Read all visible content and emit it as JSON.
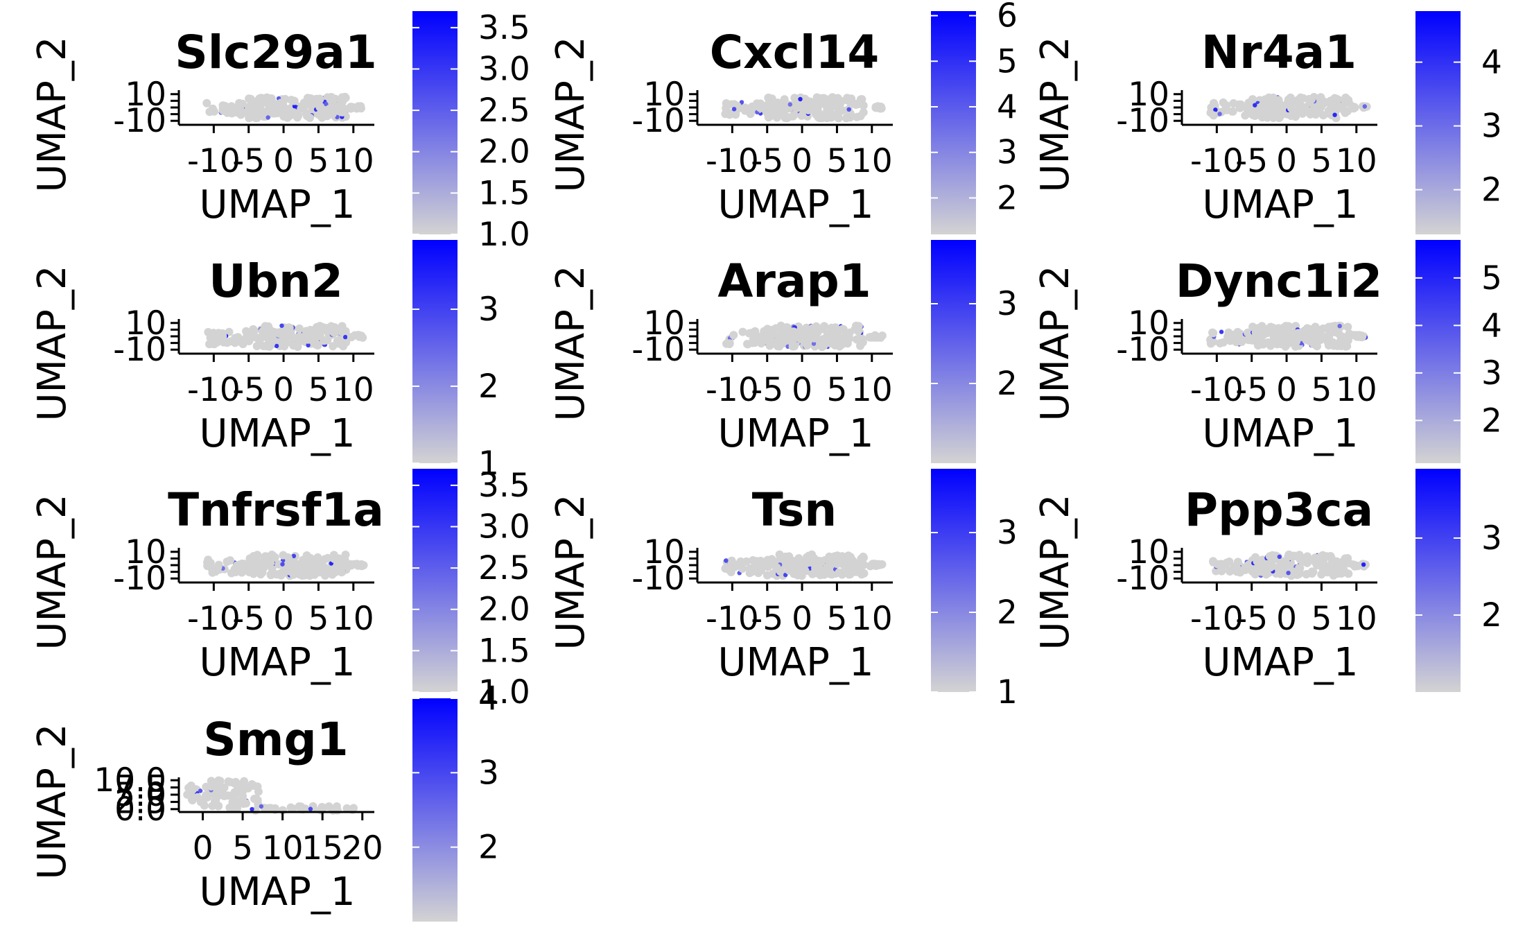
{
  "chart_data": [
    {
      "type": "scatter",
      "title": "Slc29a1",
      "xlabel": "UMAP_1",
      "ylabel": "UMAP_2",
      "xlim": [
        -15,
        13
      ],
      "ylim": [
        -13,
        13
      ],
      "xticks": [
        -10,
        -5,
        0,
        5,
        10
      ],
      "yticks": [
        -10,
        -5,
        0,
        5,
        10
      ],
      "xtick_labels": [
        "-10",
        "-5",
        "0",
        "5",
        "10"
      ],
      "ytick_labels": [
        "-10",
        "",
        "",
        "",
        "10"
      ],
      "color_scale": {
        "low": "#d3d3d3",
        "high": "#0000ff",
        "range": [
          1.0,
          3.7
        ],
        "ticks": [
          1.0,
          1.5,
          2.0,
          2.5,
          3.0,
          3.5
        ],
        "tick_labels": [
          "1.0",
          "1.5",
          "2.0",
          "2.5",
          "3.0",
          "3.5"
        ]
      }
    },
    {
      "type": "scatter",
      "title": "Cxcl14",
      "xlabel": "UMAP_1",
      "ylabel": "UMAP_2",
      "xlim": [
        -15,
        13
      ],
      "ylim": [
        -13,
        13
      ],
      "xticks": [
        -10,
        -5,
        0,
        5,
        10
      ],
      "yticks": [
        -10,
        -5,
        0,
        5,
        10
      ],
      "xtick_labels": [
        "-10",
        "-5",
        "0",
        "5",
        "10"
      ],
      "ytick_labels": [
        "-10",
        "",
        "",
        "",
        "10"
      ],
      "color_scale": {
        "low": "#d3d3d3",
        "high": "#0000ff",
        "range": [
          1.2,
          6.1
        ],
        "ticks": [
          2,
          3,
          4,
          5,
          6
        ],
        "tick_labels": [
          "2",
          "3",
          "4",
          "5",
          "6"
        ]
      }
    },
    {
      "type": "scatter",
      "title": "Nr4a1",
      "xlabel": "UMAP_1",
      "ylabel": "UMAP_2",
      "xlim": [
        -15,
        13
      ],
      "ylim": [
        -13,
        13
      ],
      "xticks": [
        -10,
        -5,
        0,
        5,
        10
      ],
      "yticks": [
        -10,
        -5,
        0,
        5,
        10
      ],
      "xtick_labels": [
        "-10",
        "-5",
        "0",
        "5",
        "10"
      ],
      "ytick_labels": [
        "-10",
        "",
        "",
        "",
        "10"
      ],
      "color_scale": {
        "low": "#d3d3d3",
        "high": "#0000ff",
        "range": [
          1.3,
          4.8
        ],
        "ticks": [
          2,
          3,
          4
        ],
        "tick_labels": [
          "2",
          "3",
          "4"
        ]
      }
    },
    {
      "type": "scatter",
      "title": "Ubn2",
      "xlabel": "UMAP_1",
      "ylabel": "UMAP_2",
      "xlim": [
        -15,
        13
      ],
      "ylim": [
        -13,
        13
      ],
      "xticks": [
        -10,
        -5,
        0,
        5,
        10
      ],
      "yticks": [
        -10,
        -5,
        0,
        5,
        10
      ],
      "xtick_labels": [
        "-10",
        "-5",
        "0",
        "5",
        "10"
      ],
      "ytick_labels": [
        "-10",
        "",
        "",
        "",
        "10"
      ],
      "color_scale": {
        "low": "#d3d3d3",
        "high": "#0000ff",
        "range": [
          1.0,
          3.9
        ],
        "ticks": [
          1,
          2,
          3
        ],
        "tick_labels": [
          "1",
          "2",
          "3"
        ]
      }
    },
    {
      "type": "scatter",
      "title": "Arap1",
      "xlabel": "UMAP_1",
      "ylabel": "UMAP_2",
      "xlim": [
        -15,
        13
      ],
      "ylim": [
        -13,
        13
      ],
      "xticks": [
        -10,
        -5,
        0,
        5,
        10
      ],
      "yticks": [
        -10,
        -5,
        0,
        5,
        10
      ],
      "xtick_labels": [
        "-10",
        "-5",
        "0",
        "5",
        "10"
      ],
      "ytick_labels": [
        "-10",
        "",
        "",
        "",
        "10"
      ],
      "color_scale": {
        "low": "#d3d3d3",
        "high": "#0000ff",
        "range": [
          1.0,
          3.8
        ],
        "ticks": [
          2,
          3
        ],
        "tick_labels": [
          "2",
          "3"
        ]
      }
    },
    {
      "type": "scatter",
      "title": "Dync1i2",
      "xlabel": "UMAP_1",
      "ylabel": "UMAP_2",
      "xlim": [
        -15,
        13
      ],
      "ylim": [
        -13,
        13
      ],
      "xticks": [
        -10,
        -5,
        0,
        5,
        10
      ],
      "yticks": [
        -10,
        -5,
        0,
        5,
        10
      ],
      "xtick_labels": [
        "-10",
        "-5",
        "0",
        "5",
        "10"
      ],
      "ytick_labels": [
        "-10",
        "",
        "",
        "",
        "10"
      ],
      "color_scale": {
        "low": "#d3d3d3",
        "high": "#0000ff",
        "range": [
          1.1,
          5.8
        ],
        "ticks": [
          2,
          3,
          4,
          5
        ],
        "tick_labels": [
          "2",
          "3",
          "4",
          "5"
        ]
      }
    },
    {
      "type": "scatter",
      "title": "Tnfrsf1a",
      "xlabel": "UMAP_1",
      "ylabel": "UMAP_2",
      "xlim": [
        -15,
        13
      ],
      "ylim": [
        -13,
        13
      ],
      "xticks": [
        -10,
        -5,
        0,
        5,
        10
      ],
      "yticks": [
        -10,
        -5,
        0,
        5,
        10
      ],
      "xtick_labels": [
        "-10",
        "-5",
        "0",
        "5",
        "10"
      ],
      "ytick_labels": [
        "-10",
        "",
        "",
        "",
        "10"
      ],
      "color_scale": {
        "low": "#d3d3d3",
        "high": "#0000ff",
        "range": [
          1.0,
          3.7
        ],
        "ticks": [
          1.0,
          1.5,
          2.0,
          2.5,
          3.0,
          3.5
        ],
        "tick_labels": [
          "1.0",
          "1.5",
          "2.0",
          "2.5",
          "3.0",
          "3.5"
        ]
      }
    },
    {
      "type": "scatter",
      "title": "Tsn",
      "xlabel": "UMAP_1",
      "ylabel": "UMAP_2",
      "xlim": [
        -15,
        13
      ],
      "ylim": [
        -13,
        13
      ],
      "xticks": [
        -10,
        -5,
        0,
        5,
        10
      ],
      "yticks": [
        -10,
        -5,
        0,
        5,
        10
      ],
      "xtick_labels": [
        "-10",
        "-5",
        "0",
        "5",
        "10"
      ],
      "ytick_labels": [
        "-10",
        "",
        "",
        "",
        "10"
      ],
      "color_scale": {
        "low": "#d3d3d3",
        "high": "#0000ff",
        "range": [
          1.0,
          3.8
        ],
        "ticks": [
          1,
          2,
          3
        ],
        "tick_labels": [
          "1",
          "2",
          "3"
        ]
      }
    },
    {
      "type": "scatter",
      "title": "Ppp3ca",
      "xlabel": "UMAP_1",
      "ylabel": "UMAP_2",
      "xlim": [
        -15,
        13
      ],
      "ylim": [
        -13,
        13
      ],
      "xticks": [
        -10,
        -5,
        0,
        5,
        10
      ],
      "yticks": [
        -10,
        -5,
        0,
        5,
        10
      ],
      "xtick_labels": [
        "-10",
        "-5",
        "0",
        "5",
        "10"
      ],
      "ytick_labels": [
        "-10",
        "",
        "",
        "",
        "10"
      ],
      "color_scale": {
        "low": "#d3d3d3",
        "high": "#0000ff",
        "range": [
          1.0,
          3.9
        ],
        "ticks": [
          2,
          3
        ],
        "tick_labels": [
          "2",
          "3"
        ]
      }
    },
    {
      "type": "scatter",
      "title": "Smg1",
      "xlabel": "UMAP_1",
      "ylabel": "UMAP_2",
      "xlim": [
        -3,
        21.5
      ],
      "ylim": [
        -1,
        11
      ],
      "xticks": [
        0,
        5,
        10,
        15,
        20
      ],
      "yticks": [
        0,
        2.5,
        5,
        7.5,
        10
      ],
      "xtick_labels": [
        "0",
        "5",
        "10",
        "15",
        "20"
      ],
      "ytick_labels": [
        "0.0",
        "2.5",
        "5.0",
        "7.5",
        "10.0"
      ],
      "color_scale": {
        "low": "#d3d3d3",
        "high": "#0000ff",
        "range": [
          1.0,
          4.0
        ],
        "ticks": [
          2,
          3,
          4
        ],
        "tick_labels": [
          "2",
          "3",
          "4"
        ]
      }
    }
  ]
}
